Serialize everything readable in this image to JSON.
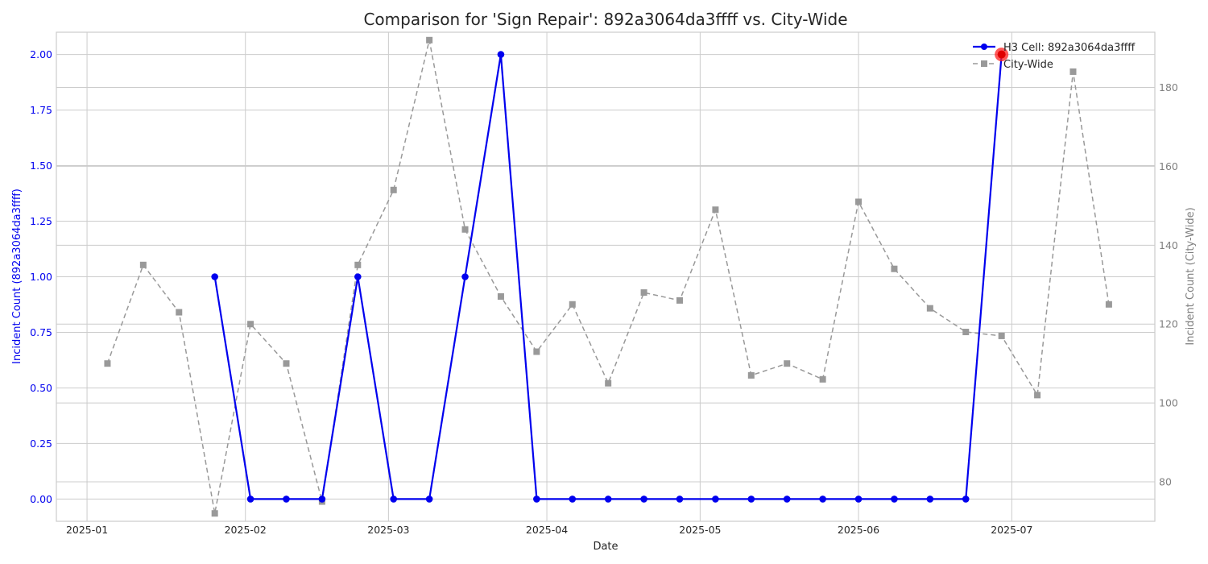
{
  "chart_data": {
    "type": "line",
    "title": "Comparison for 'Sign Repair': 892a3064da3ffff vs. City-Wide",
    "xlabel": "Date",
    "ylabel_left": "Incident Count (892a3064da3ffff)",
    "ylabel_right": "Incident Count (City-Wide)",
    "x_tick_labels": [
      "2025-01",
      "2025-02",
      "2025-03",
      "2025-04",
      "2025-05",
      "2025-06",
      "2025-07"
    ],
    "x_ticks": [
      "2025-01-01",
      "2025-02-01",
      "2025-03-01",
      "2025-04-01",
      "2025-05-01",
      "2025-06-01",
      "2025-07-01"
    ],
    "xlim": [
      "2024-12-26",
      "2025-07-29"
    ],
    "ylim_left": [
      -0.1,
      2.1
    ],
    "ylim_right": [
      70,
      194
    ],
    "y_left_ticks": [
      "0.00",
      "0.25",
      "0.50",
      "0.75",
      "1.00",
      "1.25",
      "1.50",
      "1.75",
      "2.00"
    ],
    "y_right_ticks": [
      "80",
      "100",
      "120",
      "140",
      "160",
      "180"
    ],
    "grid": true,
    "legend_position": "top-right",
    "series": [
      {
        "name": "H3 Cell: 892a3064da3ffff",
        "axis": "left",
        "color": "#0000ee",
        "style": "solid",
        "marker": "circle",
        "x": [
          "2025-01-26",
          "2025-02-02",
          "2025-02-09",
          "2025-02-16",
          "2025-02-23",
          "2025-03-02",
          "2025-03-09",
          "2025-03-16",
          "2025-03-23",
          "2025-03-30",
          "2025-04-06",
          "2025-04-13",
          "2025-04-20",
          "2025-04-27",
          "2025-05-04",
          "2025-05-11",
          "2025-05-18",
          "2025-05-25",
          "2025-06-01",
          "2025-06-08",
          "2025-06-15",
          "2025-06-22",
          "2025-06-29"
        ],
        "values": [
          1,
          0,
          0,
          0,
          1,
          0,
          0,
          1,
          2,
          0,
          0,
          0,
          0,
          0,
          0,
          0,
          0,
          0,
          0,
          0,
          0,
          0,
          2
        ]
      },
      {
        "name": "City-Wide",
        "axis": "right",
        "color": "#999999",
        "style": "dashed",
        "marker": "square",
        "x": [
          "2025-01-05",
          "2025-01-12",
          "2025-01-19",
          "2025-01-26",
          "2025-02-02",
          "2025-02-09",
          "2025-02-16",
          "2025-02-23",
          "2025-03-02",
          "2025-03-09",
          "2025-03-16",
          "2025-03-23",
          "2025-03-30",
          "2025-04-06",
          "2025-04-13",
          "2025-04-20",
          "2025-04-27",
          "2025-05-04",
          "2025-05-11",
          "2025-05-18",
          "2025-05-25",
          "2025-06-01",
          "2025-06-08",
          "2025-06-15",
          "2025-06-22",
          "2025-06-29",
          "2025-07-06",
          "2025-07-13",
          "2025-07-20"
        ],
        "values": [
          110,
          135,
          123,
          72,
          120,
          110,
          75,
          135,
          154,
          192,
          144,
          127,
          113,
          125,
          105,
          128,
          126,
          149,
          107,
          110,
          106,
          151,
          134,
          124,
          118,
          117,
          102,
          184,
          125
        ]
      }
    ],
    "highlight": {
      "series": "H3 Cell: 892a3064da3ffff",
      "x": "2025-06-29",
      "value": 2,
      "color": "#ff2020"
    }
  }
}
